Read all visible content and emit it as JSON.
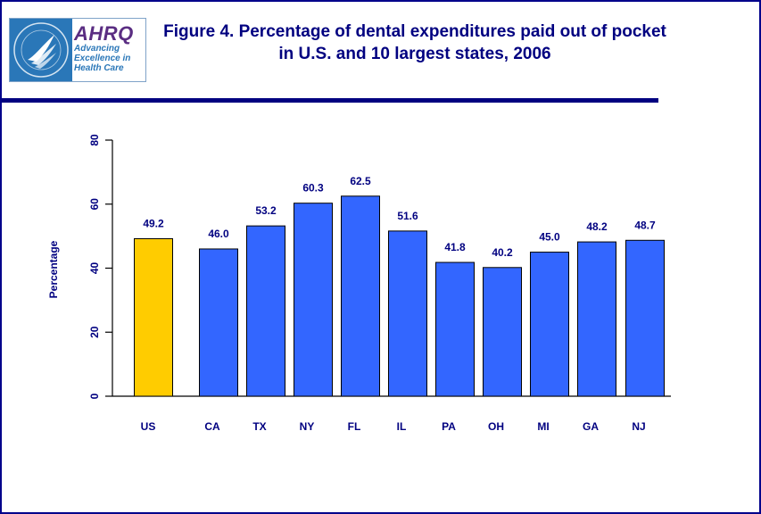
{
  "chart_data": {
    "type": "bar",
    "title": "Figure 4. Percentage of dental expenditures paid out of pocket in U.S. and 10 largest states, 2006",
    "xlabel": "",
    "ylabel": "Percentage",
    "ylim": [
      0,
      80
    ],
    "yticks": [
      "0",
      "20",
      "40",
      "60",
      "80"
    ],
    "grid": false,
    "categories": [
      "US",
      "CA",
      "TX",
      "NY",
      "FL",
      "IL",
      "PA",
      "OH",
      "MI",
      "GA",
      "NJ"
    ],
    "values": [
      49.2,
      46.0,
      53.2,
      60.3,
      62.5,
      51.6,
      41.8,
      40.2,
      45.0,
      48.2,
      48.7
    ],
    "value_labels": [
      "49.2",
      "46.0",
      "53.2",
      "60.3",
      "62.5",
      "51.6",
      "41.8",
      "40.2",
      "45.0",
      "48.2",
      "48.7"
    ],
    "colors": {
      "highlight": "#ffcc00",
      "bar": "#3366ff",
      "text": "#000080",
      "axis": "#000000"
    }
  },
  "logo": {
    "name": "AHRQ",
    "tagline_1": "Advancing",
    "tagline_2": "Excellence in",
    "tagline_3": "Health Care",
    "seal_icon": "hhs-eagle-seal-icon"
  }
}
